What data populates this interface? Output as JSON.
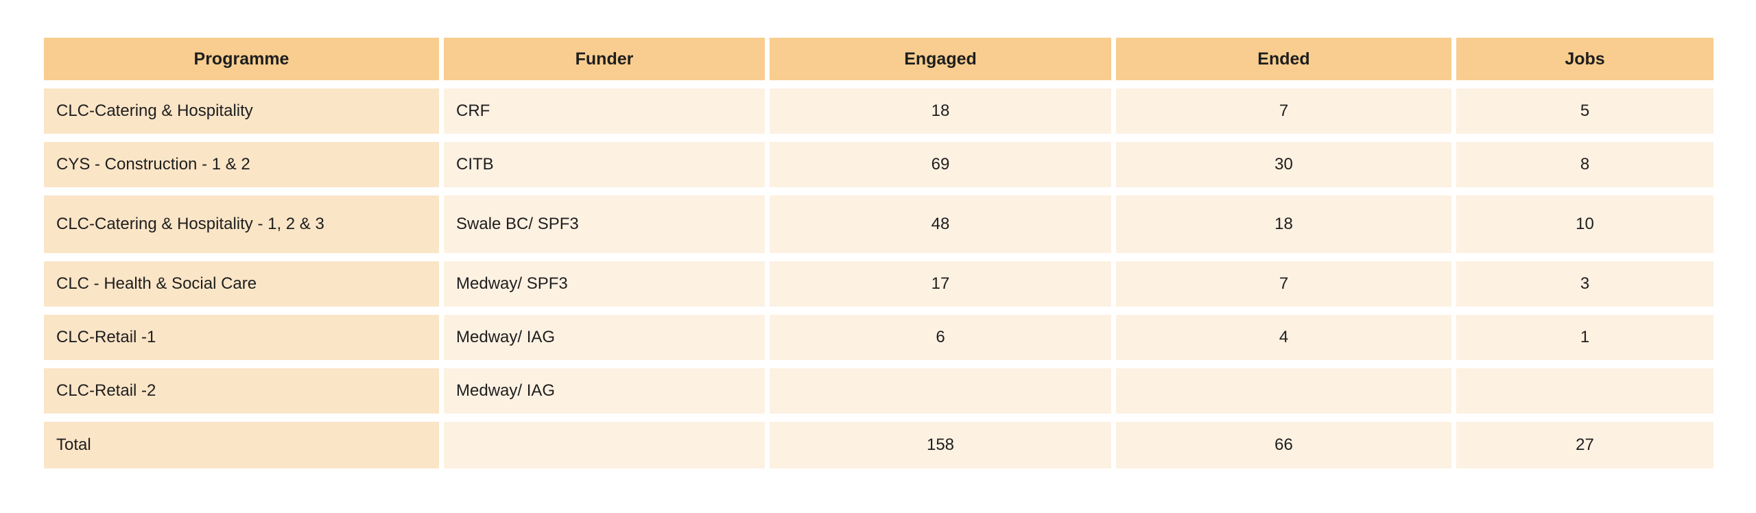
{
  "table": {
    "colors": {
      "header_bg": "#F8CD8F",
      "programme_column_bg": "#FBE5C7",
      "cell_bg": "#FDF1E2",
      "text": "#1E1E1E",
      "page_bg": "#FFFFFF"
    },
    "columns": [
      {
        "label": "Programme"
      },
      {
        "label": "Funder"
      },
      {
        "label": "Engaged"
      },
      {
        "label": "Ended"
      },
      {
        "label": "Jobs"
      }
    ],
    "rows": [
      {
        "programme": "CLC-Catering & Hospitality",
        "funder": "CRF",
        "engaged": "18",
        "ended": "7",
        "jobs": "5"
      },
      {
        "programme": "CYS - Construction - 1 & 2",
        "funder": "CITB",
        "engaged": "69",
        "ended": "30",
        "jobs": "8"
      },
      {
        "programme": "CLC-Catering & Hospitality - 1, 2 & 3",
        "funder": "Swale BC/ SPF3",
        "engaged": "48",
        "ended": "18",
        "jobs": "10"
      },
      {
        "programme": "CLC - Health & Social Care",
        "funder": "Medway/ SPF3",
        "engaged": "17",
        "ended": "7",
        "jobs": "3"
      },
      {
        "programme": "CLC-Retail -1",
        "funder": "Medway/ IAG",
        "engaged": "6",
        "ended": "4",
        "jobs": "1"
      },
      {
        "programme": "CLC-Retail -2",
        "funder": "Medway/ IAG",
        "engaged": "",
        "ended": "",
        "jobs": ""
      },
      {
        "programme": "Total",
        "funder": "",
        "engaged": "158",
        "ended": "66",
        "jobs": "27"
      }
    ]
  },
  "chart_data": {
    "type": "table",
    "title": "",
    "columns": [
      "Programme",
      "Funder",
      "Engaged",
      "Ended",
      "Jobs"
    ],
    "rows": [
      [
        "CLC-Catering & Hospitality",
        "CRF",
        18,
        7,
        5
      ],
      [
        "CYS - Construction - 1 & 2",
        "CITB",
        69,
        30,
        8
      ],
      [
        "CLC-Catering & Hospitality - 1, 2 & 3",
        "Swale BC/ SPF3",
        48,
        18,
        10
      ],
      [
        "CLC - Health & Social Care",
        "Medway/ SPF3",
        17,
        7,
        3
      ],
      [
        "CLC-Retail -1",
        "Medway/ IAG",
        6,
        4,
        1
      ],
      [
        "CLC-Retail -2",
        "Medway/ IAG",
        null,
        null,
        null
      ],
      [
        "Total",
        "",
        158,
        66,
        27
      ]
    ]
  }
}
